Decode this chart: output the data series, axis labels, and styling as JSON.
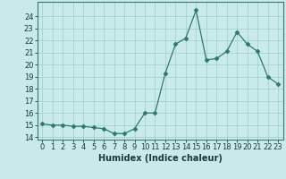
{
  "x": [
    0,
    1,
    2,
    3,
    4,
    5,
    6,
    7,
    8,
    9,
    10,
    11,
    12,
    13,
    14,
    15,
    16,
    17,
    18,
    19,
    20,
    21,
    22,
    23
  ],
  "y": [
    15.1,
    15.0,
    15.0,
    14.9,
    14.9,
    14.8,
    14.7,
    14.3,
    14.3,
    14.7,
    16.0,
    16.0,
    19.3,
    21.7,
    22.2,
    24.5,
    20.4,
    20.5,
    21.1,
    22.7,
    21.7,
    21.1,
    19.0,
    18.4
  ],
  "line_color": "#2d7a6a",
  "marker": "D",
  "marker_size": 2.5,
  "bg_color": "#c8eaea",
  "grid_color": "#a0cccc",
  "xlabel": "Humidex (Indice chaleur)",
  "xlim": [
    -0.5,
    23.5
  ],
  "ylim": [
    13.8,
    25.2
  ],
  "yticks": [
    14,
    15,
    16,
    17,
    18,
    19,
    20,
    21,
    22,
    23,
    24
  ],
  "xticks": [
    0,
    1,
    2,
    3,
    4,
    5,
    6,
    7,
    8,
    9,
    10,
    11,
    12,
    13,
    14,
    15,
    16,
    17,
    18,
    19,
    20,
    21,
    22,
    23
  ],
  "tick_fontsize": 6,
  "xlabel_fontsize": 7,
  "spine_color": "#3a7a6a",
  "tick_color": "#1a3a3a"
}
